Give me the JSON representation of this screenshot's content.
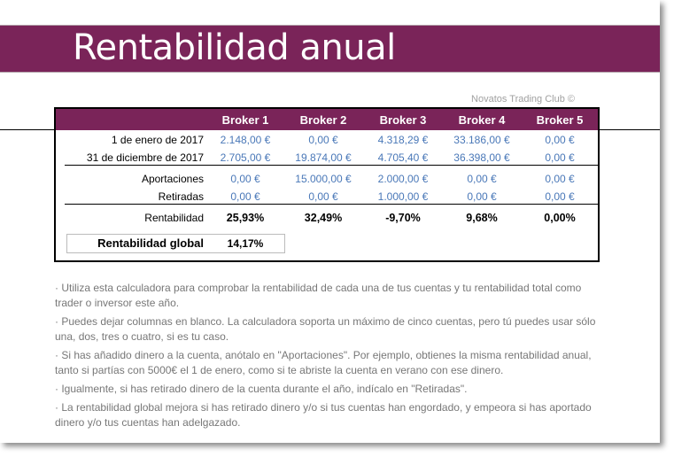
{
  "title": "Rentabilidad anual",
  "credit": "Novatos Trading Club ©",
  "colors": {
    "accent": "#7a2459",
    "value_blue": "#4a78b8"
  },
  "table": {
    "headers": [
      "Broker 1",
      "Broker 2",
      "Broker 3",
      "Broker 4",
      "Broker 5"
    ],
    "rows": [
      {
        "label": "1 de enero de 2017",
        "values": [
          "2.148,00 €",
          "0,00 €",
          "4.318,29 €",
          "33.186,00 €",
          "0,00 €"
        ]
      },
      {
        "label": "31 de diciembre de 2017",
        "values": [
          "2.705,00 €",
          "19.874,00 €",
          "4.705,40 €",
          "36.398,00 €",
          "0,00 €"
        ]
      },
      {
        "label": "Aportaciones",
        "values": [
          "0,00 €",
          "15.000,00 €",
          "2.000,00 €",
          "0,00 €",
          "0,00 €"
        ]
      },
      {
        "label": "Retiradas",
        "values": [
          "0,00 €",
          "0,00 €",
          "1.000,00 €",
          "0,00 €",
          "0,00 €"
        ]
      },
      {
        "label": "Rentabilidad",
        "values": [
          "25,93%",
          "32,49%",
          "-9,70%",
          "9,68%",
          "0,00%"
        ]
      }
    ],
    "global": {
      "label": "Rentabilidad global",
      "value": "14,17%"
    }
  },
  "notes": [
    " · Utiliza esta calculadora para comprobar la rentabilidad de cada una de tus cuentas y tu rentabilidad total como trader o inversor este año.",
    " · Puedes dejar columnas en blanco. La calculadora soporta un máximo de cinco cuentas, pero tú puedes usar sólo una, dos, tres o cuatro, si es tu caso.",
    " · Si has añadido dinero a la cuenta, anótalo en \"Aportaciones\". Por ejemplo, obtienes  la misma rentabilidad anual, tanto si partías con 5000€ el 1 de enero, como si te abriste la cuenta en verano con ese dinero.",
    " · Igualmente, si has retirado dinero de la cuenta durante el año, indícalo en \"Retiradas\".",
    " · La rentabilidad global mejora si has retirado dinero y/o si tus cuentas han engordado, y empeora si has aportado dinero y/o tus cuentas han adelgazado."
  ]
}
